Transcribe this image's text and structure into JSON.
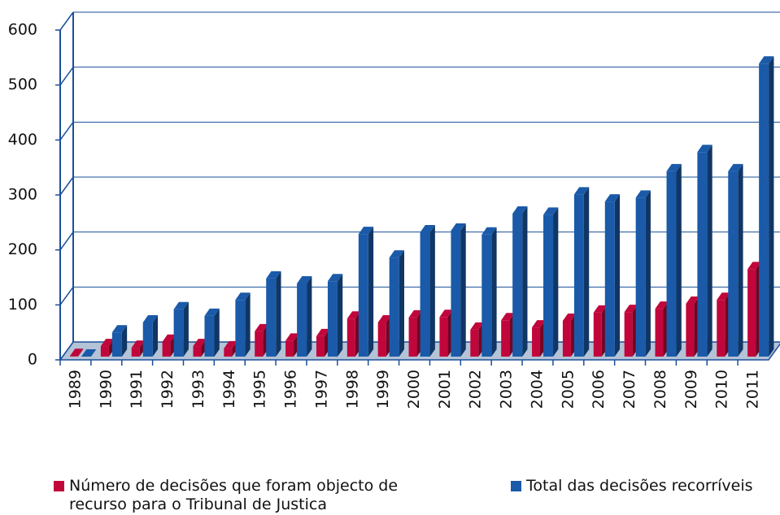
{
  "chart_data": {
    "type": "bar3d",
    "categories": [
      "1989",
      "1990",
      "1991",
      "1992",
      "1993",
      "1994",
      "1995",
      "1996",
      "1997",
      "1998",
      "1999",
      "2000",
      "2001",
      "2002",
      "2003",
      "2004",
      "2005",
      "2006",
      "2007",
      "2008",
      "2009",
      "2010",
      "2011"
    ],
    "series": [
      {
        "name": "Número de decisões que foram objecto de recurso para o Tribunal de Justica",
        "color": "#c0063b",
        "values": [
          4,
          22,
          19,
          30,
          22,
          18,
          49,
          32,
          40,
          72,
          65,
          74,
          75,
          52,
          69,
          56,
          68,
          83,
          84,
          90,
          99,
          106,
          162
        ]
      },
      {
        "name": "Total das decisões recorríveis",
        "color": "#1a5aa8",
        "values": [
          3,
          47,
          65,
          89,
          77,
          106,
          145,
          136,
          140,
          226,
          183,
          229,
          232,
          225,
          263,
          261,
          298,
          285,
          292,
          340,
          375,
          340,
          536
        ]
      }
    ],
    "ylim": [
      0,
      600
    ],
    "yticks": [
      0,
      100,
      200,
      300,
      400,
      500,
      600
    ],
    "grid": true
  }
}
